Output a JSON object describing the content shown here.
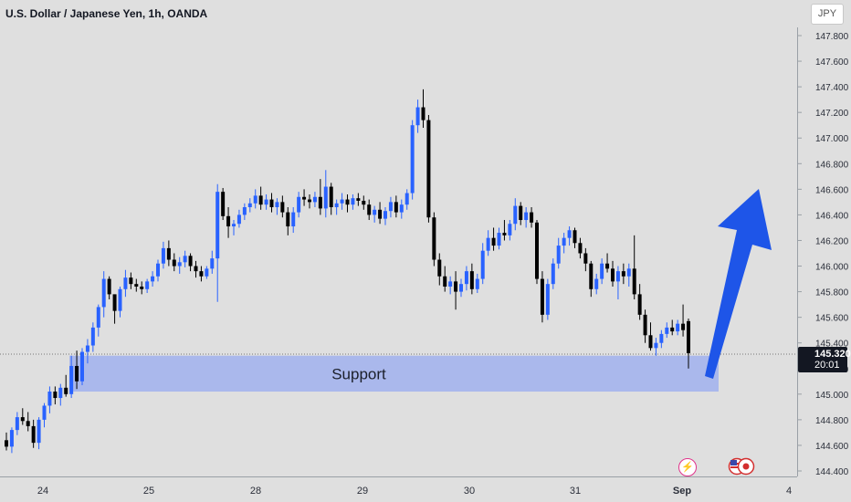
{
  "header": {
    "title": "U.S. Dollar / Japanese Yen, 1h, OANDA",
    "currency": "JPY"
  },
  "price_label": {
    "price": "145.320",
    "countdown": "20:01"
  },
  "icons": {
    "flash": "lightning-icon",
    "flags": "us-japan-flags-icon"
  },
  "colors": {
    "up_candle": "#2962ff",
    "down_candle": "#000000",
    "support_zone": "#aab8ec",
    "arrow": "#1e55e8",
    "background": "#dfdfdf"
  },
  "chart_data": {
    "type": "candlestick",
    "y_ticks": [
      "147.800",
      "147.600",
      "147.400",
      "147.200",
      "147.000",
      "146.800",
      "146.600",
      "146.400",
      "146.200",
      "146.000",
      "145.800",
      "145.600",
      "145.400",
      "145.200",
      "145.000",
      "144.800",
      "144.600",
      "144.400"
    ],
    "x_ticks": [
      "24",
      "25",
      "28",
      "29",
      "30",
      "31",
      "Sep",
      "4"
    ],
    "ylim": [
      144.38,
      147.86
    ],
    "annotations": [
      {
        "type": "zone",
        "label": "Support",
        "y_from": 145.02,
        "y_to": 145.3
      },
      {
        "type": "arrow",
        "direction": "up",
        "from_y": 145.2,
        "to_y": 146.62
      }
    ],
    "current_price": 145.32,
    "candles": [
      [
        144.64,
        144.7,
        144.56,
        144.59
      ],
      [
        144.59,
        144.74,
        144.54,
        144.72
      ],
      [
        144.72,
        144.86,
        144.68,
        144.82
      ],
      [
        144.82,
        144.89,
        144.76,
        144.79
      ],
      [
        144.79,
        144.86,
        144.71,
        144.75
      ],
      [
        144.75,
        144.8,
        144.58,
        144.62
      ],
      [
        144.62,
        144.82,
        144.57,
        144.8
      ],
      [
        144.8,
        144.93,
        144.74,
        144.91
      ],
      [
        144.91,
        145.06,
        144.85,
        145.02
      ],
      [
        145.02,
        145.06,
        144.92,
        144.97
      ],
      [
        144.97,
        145.08,
        144.91,
        145.05
      ],
      [
        145.05,
        145.15,
        144.98,
        145.0
      ],
      [
        145.0,
        145.3,
        144.97,
        145.22
      ],
      [
        145.22,
        145.34,
        145.04,
        145.1
      ],
      [
        145.1,
        145.36,
        145.07,
        145.33
      ],
      [
        145.33,
        145.43,
        145.24,
        145.38
      ],
      [
        145.38,
        145.56,
        145.33,
        145.52
      ],
      [
        145.52,
        145.7,
        145.45,
        145.68
      ],
      [
        145.68,
        145.96,
        145.6,
        145.9
      ],
      [
        145.9,
        145.92,
        145.74,
        145.78
      ],
      [
        145.78,
        145.75,
        145.55,
        145.65
      ],
      [
        145.65,
        145.84,
        145.6,
        145.82
      ],
      [
        145.82,
        145.97,
        145.76,
        145.91
      ],
      [
        145.91,
        145.95,
        145.82,
        145.86
      ],
      [
        145.86,
        145.9,
        145.8,
        145.84
      ],
      [
        145.84,
        145.88,
        145.78,
        145.82
      ],
      [
        145.82,
        145.9,
        145.79,
        145.88
      ],
      [
        145.88,
        145.96,
        145.84,
        145.92
      ],
      [
        145.92,
        146.05,
        145.88,
        146.02
      ],
      [
        146.02,
        146.19,
        145.98,
        146.14
      ],
      [
        146.14,
        146.2,
        146.0,
        146.05
      ],
      [
        146.05,
        146.1,
        145.96,
        146.0
      ],
      [
        146.0,
        146.07,
        145.94,
        146.03
      ],
      [
        146.03,
        146.12,
        145.99,
        146.08
      ],
      [
        146.08,
        146.1,
        145.96,
        146.0
      ],
      [
        146.0,
        146.04,
        145.91,
        145.96
      ],
      [
        145.96,
        146.0,
        145.88,
        145.92
      ],
      [
        145.92,
        146.0,
        145.9,
        145.98
      ],
      [
        145.98,
        146.12,
        145.94,
        146.06
      ],
      [
        146.06,
        146.64,
        145.72,
        146.58
      ],
      [
        146.58,
        146.61,
        146.36,
        146.39
      ],
      [
        146.39,
        146.46,
        146.22,
        146.31
      ],
      [
        146.31,
        146.36,
        146.24,
        146.33
      ],
      [
        146.33,
        146.44,
        146.3,
        146.4
      ],
      [
        146.4,
        146.49,
        146.36,
        146.46
      ],
      [
        146.46,
        146.53,
        146.42,
        146.49
      ],
      [
        146.49,
        146.6,
        146.45,
        146.55
      ],
      [
        146.55,
        146.62,
        146.44,
        146.48
      ],
      [
        146.48,
        146.56,
        146.44,
        146.52
      ],
      [
        146.52,
        146.57,
        146.42,
        146.46
      ],
      [
        146.46,
        146.53,
        146.4,
        146.5
      ],
      [
        146.5,
        146.55,
        146.38,
        146.42
      ],
      [
        146.42,
        146.46,
        146.24,
        146.31
      ],
      [
        146.31,
        146.46,
        146.26,
        146.42
      ],
      [
        146.42,
        146.58,
        146.38,
        146.54
      ],
      [
        146.54,
        146.6,
        146.47,
        146.52
      ],
      [
        146.52,
        146.56,
        146.45,
        146.5
      ],
      [
        146.5,
        146.58,
        146.46,
        146.54
      ],
      [
        146.54,
        146.68,
        146.4,
        146.45
      ],
      [
        146.45,
        146.75,
        146.38,
        146.62
      ],
      [
        146.62,
        146.65,
        146.4,
        146.46
      ],
      [
        146.46,
        146.52,
        146.4,
        146.49
      ],
      [
        146.49,
        146.57,
        146.44,
        146.52
      ],
      [
        146.52,
        146.56,
        146.42,
        146.48
      ],
      [
        146.48,
        146.56,
        146.44,
        146.53
      ],
      [
        146.53,
        146.57,
        146.47,
        146.51
      ],
      [
        146.51,
        146.55,
        146.44,
        146.48
      ],
      [
        146.48,
        146.52,
        146.36,
        146.4
      ],
      [
        146.4,
        146.47,
        146.34,
        146.44
      ],
      [
        146.44,
        146.5,
        146.33,
        146.37
      ],
      [
        146.37,
        146.46,
        146.32,
        146.43
      ],
      [
        146.43,
        146.54,
        146.38,
        146.5
      ],
      [
        146.5,
        146.55,
        146.38,
        146.42
      ],
      [
        146.42,
        146.52,
        146.37,
        146.48
      ],
      [
        146.48,
        146.6,
        146.44,
        146.57
      ],
      [
        146.57,
        147.14,
        146.52,
        147.1
      ],
      [
        147.1,
        147.3,
        147.04,
        147.24
      ],
      [
        147.24,
        147.38,
        147.08,
        147.14
      ],
      [
        147.14,
        147.18,
        146.34,
        146.38
      ],
      [
        146.38,
        146.42,
        146.0,
        146.05
      ],
      [
        146.05,
        146.1,
        145.85,
        145.92
      ],
      [
        145.92,
        146.0,
        145.8,
        145.84
      ],
      [
        145.84,
        145.92,
        145.78,
        145.88
      ],
      [
        145.88,
        145.96,
        145.66,
        145.8
      ],
      [
        145.8,
        145.9,
        145.76,
        145.86
      ],
      [
        145.86,
        146.0,
        145.81,
        145.96
      ],
      [
        145.96,
        146.02,
        145.78,
        145.82
      ],
      [
        145.82,
        145.94,
        145.79,
        145.9
      ],
      [
        145.9,
        146.18,
        145.86,
        146.12
      ],
      [
        146.12,
        146.28,
        146.08,
        146.22
      ],
      [
        146.22,
        146.3,
        146.12,
        146.16
      ],
      [
        146.16,
        146.3,
        146.13,
        146.26
      ],
      [
        146.26,
        146.36,
        146.2,
        146.24
      ],
      [
        146.24,
        146.36,
        146.2,
        146.33
      ],
      [
        146.33,
        146.53,
        146.28,
        146.47
      ],
      [
        146.47,
        146.5,
        146.32,
        146.36
      ],
      [
        146.36,
        146.46,
        146.3,
        146.42
      ],
      [
        146.42,
        146.46,
        146.3,
        146.34
      ],
      [
        146.34,
        146.36,
        145.86,
        145.9
      ],
      [
        145.9,
        145.96,
        145.56,
        145.62
      ],
      [
        145.62,
        145.9,
        145.58,
        145.86
      ],
      [
        145.86,
        146.06,
        145.82,
        146.02
      ],
      [
        146.02,
        146.22,
        145.98,
        146.16
      ],
      [
        146.16,
        146.26,
        146.1,
        146.22
      ],
      [
        146.22,
        146.31,
        146.16,
        146.28
      ],
      [
        146.28,
        146.3,
        146.14,
        146.18
      ],
      [
        146.18,
        146.22,
        146.06,
        146.1
      ],
      [
        146.1,
        146.14,
        145.96,
        146.02
      ],
      [
        146.02,
        146.04,
        145.76,
        145.82
      ],
      [
        145.82,
        145.94,
        145.78,
        145.9
      ],
      [
        145.9,
        146.06,
        145.86,
        146.02
      ],
      [
        146.02,
        146.1,
        145.95,
        145.98
      ],
      [
        145.98,
        146.04,
        145.84,
        145.88
      ],
      [
        145.88,
        146.0,
        145.74,
        145.96
      ],
      [
        145.96,
        146.02,
        145.86,
        145.92
      ],
      [
        145.92,
        146.02,
        145.84,
        145.98
      ],
      [
        145.98,
        146.24,
        145.74,
        145.78
      ],
      [
        145.78,
        145.86,
        145.58,
        145.62
      ],
      [
        145.62,
        145.66,
        145.4,
        145.46
      ],
      [
        145.46,
        145.56,
        145.34,
        145.36
      ],
      [
        145.36,
        145.44,
        145.3,
        145.4
      ],
      [
        145.4,
        145.5,
        145.36,
        145.47
      ],
      [
        145.47,
        145.56,
        145.44,
        145.52
      ],
      [
        145.52,
        145.58,
        145.46,
        145.49
      ],
      [
        145.49,
        145.58,
        145.46,
        145.55
      ],
      [
        145.55,
        145.7,
        145.45,
        145.5
      ],
      [
        145.57,
        145.59,
        145.2,
        145.32
      ]
    ]
  }
}
